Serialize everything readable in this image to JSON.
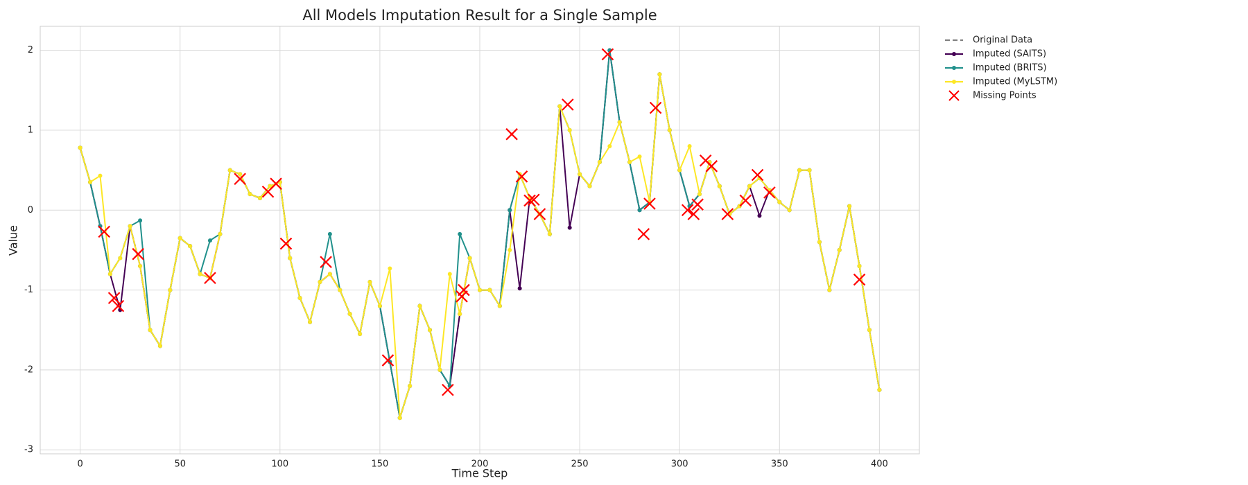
{
  "chart_data": {
    "type": "line",
    "title": "All Models Imputation Result for a Single Sample",
    "x_label": "Time Step",
    "y_label": "Value",
    "grid": true,
    "legend": "outside upper right",
    "xlim": [
      -20,
      420
    ],
    "ylim": [
      -3.05,
      2.3
    ],
    "xticks": [
      0,
      50,
      100,
      150,
      200,
      250,
      300,
      350,
      400
    ],
    "yticks": [
      -3,
      -2,
      -1,
      0,
      1,
      2
    ],
    "x": [
      0,
      5,
      10,
      15,
      20,
      25,
      30,
      35,
      40,
      45,
      50,
      55,
      60,
      65,
      70,
      75,
      80,
      85,
      90,
      95,
      100,
      105,
      110,
      115,
      120,
      125,
      130,
      135,
      140,
      145,
      150,
      155,
      160,
      165,
      170,
      175,
      180,
      185,
      190,
      195,
      200,
      205,
      210,
      215,
      220,
      225,
      230,
      235,
      240,
      245,
      250,
      255,
      260,
      265,
      270,
      275,
      280,
      285,
      290,
      295,
      300,
      305,
      310,
      315,
      320,
      325,
      330,
      335,
      340,
      345,
      350,
      355,
      360,
      365,
      370,
      375,
      380,
      385,
      390,
      395,
      400
    ],
    "series": [
      {
        "name": "Original Data",
        "color": "#808080",
        "dashed": true,
        "markers": false,
        "values": [
          0.78,
          0.35,
          -0.2,
          -0.8,
          -0.6,
          -0.2,
          -0.7,
          -1.5,
          -1.7,
          -1.0,
          -0.35,
          -0.45,
          -0.8,
          -0.85,
          -0.3,
          0.5,
          0.45,
          0.2,
          0.15,
          0.3,
          0.35,
          -0.6,
          -1.1,
          -1.4,
          -0.9,
          -0.8,
          -1.0,
          -1.3,
          -1.55,
          -0.9,
          -1.2,
          -1.9,
          -2.6,
          -2.2,
          -1.2,
          -1.5,
          -2.0,
          -2.2,
          -1.3,
          -0.6,
          -1.0,
          -1.0,
          -1.2,
          0.0,
          0.45,
          0.15,
          -0.05,
          -0.3,
          1.3,
          1.0,
          0.45,
          0.3,
          0.6,
          2.0,
          1.1,
          0.6,
          0.0,
          0.1,
          1.7,
          1.0,
          0.5,
          0.05,
          0.2,
          0.6,
          0.3,
          -0.05,
          0.05,
          0.3,
          0.4,
          0.25,
          0.1,
          0.0,
          0.5,
          0.5,
          -0.4,
          -1.0,
          -0.5,
          0.05,
          -0.7,
          -1.5,
          -2.25
        ]
      },
      {
        "name": "Imputed (SAITS)",
        "color": "#440154",
        "dashed": false,
        "markers": true,
        "values": [
          0.78,
          0.35,
          -0.2,
          -0.8,
          -1.25,
          -0.2,
          -0.7,
          -1.5,
          -1.7,
          -1.0,
          -0.35,
          -0.45,
          -0.8,
          -0.85,
          -0.3,
          0.5,
          0.45,
          0.2,
          0.15,
          0.3,
          0.35,
          -0.6,
          -1.1,
          -1.4,
          -0.9,
          -0.8,
          -1.0,
          -1.3,
          -1.55,
          -0.9,
          -1.2,
          -1.9,
          -2.6,
          -2.2,
          -1.2,
          -1.5,
          -2.0,
          -2.2,
          -1.3,
          -0.6,
          -1.0,
          -1.0,
          -1.2,
          0.0,
          -0.98,
          0.15,
          -0.05,
          -0.3,
          1.3,
          -0.22,
          0.45,
          0.3,
          0.6,
          2.0,
          1.1,
          0.6,
          0.0,
          0.1,
          1.7,
          1.0,
          0.5,
          0.05,
          0.2,
          0.6,
          0.3,
          -0.05,
          0.05,
          0.3,
          -0.07,
          0.25,
          0.1,
          0.0,
          0.5,
          0.5,
          -0.4,
          -1.0,
          -0.5,
          0.05,
          -0.7,
          -1.5,
          -2.25
        ]
      },
      {
        "name": "Imputed (BRITS)",
        "color": "#21918c",
        "dashed": false,
        "markers": true,
        "values": [
          0.78,
          0.35,
          -0.2,
          -0.8,
          -0.6,
          -0.2,
          -0.13,
          -1.5,
          -1.7,
          -1.0,
          -0.35,
          -0.45,
          -0.8,
          -0.38,
          -0.3,
          0.5,
          0.45,
          0.2,
          0.15,
          0.3,
          0.35,
          -0.6,
          -1.1,
          -1.4,
          -0.9,
          -0.3,
          -1.0,
          -1.3,
          -1.55,
          -0.9,
          -1.2,
          -1.9,
          -2.6,
          -2.2,
          -1.2,
          -1.5,
          -2.0,
          -2.2,
          -0.3,
          -0.6,
          -1.0,
          -1.0,
          -1.2,
          0.0,
          0.45,
          0.15,
          -0.05,
          -0.3,
          1.3,
          1.0,
          0.45,
          0.3,
          0.6,
          2.0,
          1.1,
          0.6,
          0.0,
          0.1,
          1.7,
          1.0,
          0.5,
          0.05,
          0.2,
          0.6,
          0.3,
          -0.05,
          0.05,
          0.3,
          0.4,
          0.25,
          0.1,
          0.0,
          0.5,
          0.5,
          -0.4,
          -1.0,
          -0.5,
          0.05,
          -0.7,
          -1.5,
          -2.25
        ]
      },
      {
        "name": "Imputed (MyLSTM)",
        "color": "#fde725",
        "dashed": false,
        "markers": true,
        "values": [
          0.78,
          0.35,
          0.43,
          -0.8,
          -0.6,
          -0.2,
          -0.7,
          -1.5,
          -1.7,
          -1.0,
          -0.35,
          -0.45,
          -0.8,
          -0.85,
          -0.3,
          0.5,
          0.45,
          0.2,
          0.15,
          0.3,
          0.35,
          -0.6,
          -1.1,
          -1.4,
          -0.9,
          -0.8,
          -1.0,
          -1.3,
          -1.55,
          -0.9,
          -1.2,
          -0.73,
          -2.6,
          -2.2,
          -1.2,
          -1.5,
          -2.0,
          -0.8,
          -1.3,
          -0.6,
          -1.0,
          -1.0,
          -1.2,
          -0.5,
          0.45,
          0.15,
          -0.05,
          -0.3,
          1.3,
          1.0,
          0.45,
          0.3,
          0.6,
          0.8,
          1.1,
          0.6,
          0.67,
          0.1,
          1.7,
          1.0,
          0.5,
          0.8,
          0.2,
          0.6,
          0.3,
          -0.05,
          0.05,
          0.3,
          0.4,
          0.25,
          0.1,
          0.0,
          0.5,
          0.5,
          -0.4,
          -1.0,
          -0.5,
          0.05,
          -0.7,
          -1.5,
          -2.25
        ]
      },
      {
        "name": "Missing Points",
        "type": "scatter",
        "marker": "x",
        "color": "#ff0000",
        "x": [
          12,
          17,
          19,
          29,
          65,
          80,
          94,
          98,
          103,
          123,
          154,
          184,
          191,
          192,
          216,
          221,
          225,
          227,
          230,
          244,
          264,
          282,
          285,
          288,
          304,
          307,
          309,
          313,
          316,
          324,
          333,
          339,
          345,
          390
        ],
        "values": [
          -0.27,
          -1.1,
          -1.2,
          -0.55,
          -0.85,
          0.39,
          0.23,
          0.33,
          -0.42,
          -0.65,
          -1.88,
          -2.25,
          -1.08,
          -1.0,
          0.95,
          0.42,
          0.12,
          0.13,
          -0.05,
          1.32,
          1.95,
          -0.3,
          0.08,
          1.28,
          0.0,
          -0.05,
          0.07,
          0.62,
          0.55,
          -0.05,
          0.12,
          0.44,
          0.22,
          -0.87
        ]
      }
    ]
  }
}
